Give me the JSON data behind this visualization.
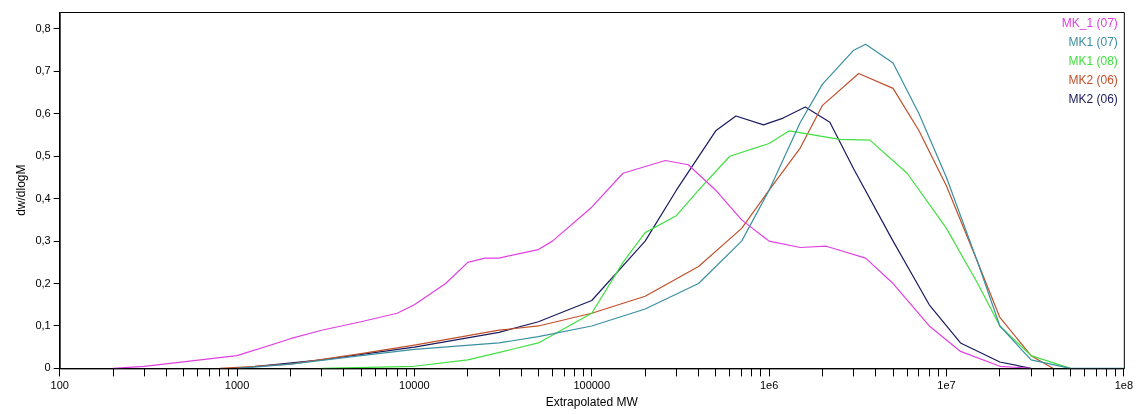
{
  "chart_data": {
    "type": "line",
    "xlabel": "Extrapolated MW",
    "ylabel": "dw/dlogM",
    "log": "x",
    "grid": false,
    "legend": "top right",
    "marker": "none",
    "xlim": [
      100,
      100000000
    ],
    "ylim": [
      0,
      0.84
    ],
    "xticks": [
      {
        "value": 100,
        "label": "100"
      },
      {
        "value": 200,
        "label": null
      },
      {
        "value": 300,
        "label": null
      },
      {
        "value": 400,
        "label": null
      },
      {
        "value": 500,
        "label": null
      },
      {
        "value": 600,
        "label": null
      },
      {
        "value": 700,
        "label": null
      },
      {
        "value": 800,
        "label": null
      },
      {
        "value": 900,
        "label": null
      },
      {
        "value": 1000,
        "label": "1000"
      },
      {
        "value": 2000,
        "label": null
      },
      {
        "value": 3000,
        "label": null
      },
      {
        "value": 4000,
        "label": null
      },
      {
        "value": 5000,
        "label": null
      },
      {
        "value": 6000,
        "label": null
      },
      {
        "value": 7000,
        "label": null
      },
      {
        "value": 8000,
        "label": null
      },
      {
        "value": 9000,
        "label": null
      },
      {
        "value": 10000,
        "label": "10000"
      },
      {
        "value": 20000,
        "label": null
      },
      {
        "value": 30000,
        "label": null
      },
      {
        "value": 40000,
        "label": null
      },
      {
        "value": 50000,
        "label": null
      },
      {
        "value": 60000,
        "label": null
      },
      {
        "value": 70000,
        "label": null
      },
      {
        "value": 80000,
        "label": null
      },
      {
        "value": 90000,
        "label": null
      },
      {
        "value": 100000,
        "label": "100000"
      },
      {
        "value": 200000,
        "label": null
      },
      {
        "value": 300000,
        "label": null
      },
      {
        "value": 400000,
        "label": null
      },
      {
        "value": 500000,
        "label": null
      },
      {
        "value": 600000,
        "label": null
      },
      {
        "value": 700000,
        "label": null
      },
      {
        "value": 800000,
        "label": null
      },
      {
        "value": 900000,
        "label": null
      },
      {
        "value": 1000000,
        "label": "1e6"
      },
      {
        "value": 2000000,
        "label": null
      },
      {
        "value": 3000000,
        "label": null
      },
      {
        "value": 4000000,
        "label": null
      },
      {
        "value": 5000000,
        "label": null
      },
      {
        "value": 6000000,
        "label": null
      },
      {
        "value": 7000000,
        "label": null
      },
      {
        "value": 8000000,
        "label": null
      },
      {
        "value": 9000000,
        "label": null
      },
      {
        "value": 10000000,
        "label": "1e7"
      },
      {
        "value": 20000000,
        "label": null
      },
      {
        "value": 30000000,
        "label": null
      },
      {
        "value": 40000000,
        "label": null
      },
      {
        "value": 50000000,
        "label": null
      },
      {
        "value": 60000000,
        "label": null
      },
      {
        "value": 70000000,
        "label": null
      },
      {
        "value": 80000000,
        "label": null
      },
      {
        "value": 90000000,
        "label": null
      },
      {
        "value": 100000000,
        "label": "1e8"
      }
    ],
    "yticks": [
      {
        "value": 0,
        "label": "0"
      },
      {
        "value": 0.1,
        "label": "0,1"
      },
      {
        "value": 0.2,
        "label": "0,2"
      },
      {
        "value": 0.3,
        "label": "0,3"
      },
      {
        "value": 0.4,
        "label": "0,4"
      },
      {
        "value": 0.5,
        "label": "0,5"
      },
      {
        "value": 0.6,
        "label": "0,6"
      },
      {
        "value": 0.7,
        "label": "0,7"
      },
      {
        "value": 0.8,
        "label": "0,8"
      }
    ],
    "series": [
      {
        "name": "MK_1 (07)",
        "color": "#e040e0",
        "x": [
          200,
          300,
          1000,
          2000,
          3000,
          5000,
          8000,
          10000,
          15000,
          20000,
          25000,
          30000,
          50000,
          60000,
          100000,
          150000,
          260000,
          350000,
          500000,
          700000,
          1000000,
          1500000,
          2100000,
          3500000,
          5000000,
          8000000,
          12000000,
          20000000,
          30000000
        ],
        "values": [
          0,
          0.005,
          0.03,
          0.07,
          0.09,
          0.11,
          0.13,
          0.15,
          0.2,
          0.25,
          0.26,
          0.26,
          0.28,
          0.3,
          0.38,
          0.46,
          0.49,
          0.48,
          0.42,
          0.35,
          0.3,
          0.285,
          0.288,
          0.26,
          0.2,
          0.1,
          0.04,
          0.005,
          0
        ]
      },
      {
        "name": "MK1 (07)",
        "color": "#3a8fa0",
        "x": [
          1000,
          2000,
          5000,
          10000,
          30000,
          50000,
          100000,
          200000,
          400000,
          700000,
          1000000,
          1500000,
          2000000,
          3000000,
          3500000,
          5000000,
          7000000,
          10000000,
          15000000,
          20000000,
          30000000,
          50000000,
          100000000
        ],
        "values": [
          0,
          0.01,
          0.03,
          0.045,
          0.06,
          0.075,
          0.1,
          0.14,
          0.2,
          0.3,
          0.42,
          0.58,
          0.67,
          0.75,
          0.764,
          0.72,
          0.6,
          0.45,
          0.25,
          0.1,
          0.02,
          0,
          0
        ]
      },
      {
        "name": "MK1 (08)",
        "color": "#40e040",
        "x": [
          3000,
          10000,
          20000,
          50000,
          100000,
          150000,
          200000,
          300000,
          400000,
          600000,
          1000000,
          1300000,
          2500000,
          3700000,
          6000000,
          10000000,
          15000000,
          20000000,
          30000000,
          50000000
        ],
        "values": [
          0,
          0.005,
          0.02,
          0.06,
          0.13,
          0.25,
          0.32,
          0.36,
          0.42,
          0.5,
          0.53,
          0.56,
          0.54,
          0.538,
          0.46,
          0.33,
          0.2,
          0.1,
          0.03,
          0
        ]
      },
      {
        "name": "MK2 (06)",
        "color": "#c0502a",
        "x": [
          800,
          2000,
          5000,
          10000,
          30000,
          50000,
          100000,
          200000,
          400000,
          700000,
          1000000,
          1500000,
          2000000,
          3200000,
          5000000,
          7000000,
          10000000,
          15000000,
          20000000,
          30000000,
          40000000
        ],
        "values": [
          0,
          0.01,
          0.035,
          0.055,
          0.09,
          0.1,
          0.13,
          0.17,
          0.24,
          0.33,
          0.42,
          0.52,
          0.62,
          0.695,
          0.66,
          0.56,
          0.43,
          0.25,
          0.12,
          0.03,
          0
        ]
      },
      {
        "name": "MK2 (06)",
        "color": "#1a1a60",
        "x": [
          1000,
          3000,
          10000,
          30000,
          50000,
          100000,
          200000,
          300000,
          500000,
          650000,
          930000,
          1200000,
          1600000,
          2200000,
          3000000,
          5000000,
          8000000,
          12000000,
          20000000,
          30000000
        ],
        "values": [
          0,
          0.02,
          0.05,
          0.085,
          0.11,
          0.16,
          0.3,
          0.42,
          0.56,
          0.595,
          0.574,
          0.59,
          0.616,
          0.58,
          0.47,
          0.3,
          0.15,
          0.06,
          0.015,
          0
        ]
      }
    ]
  }
}
